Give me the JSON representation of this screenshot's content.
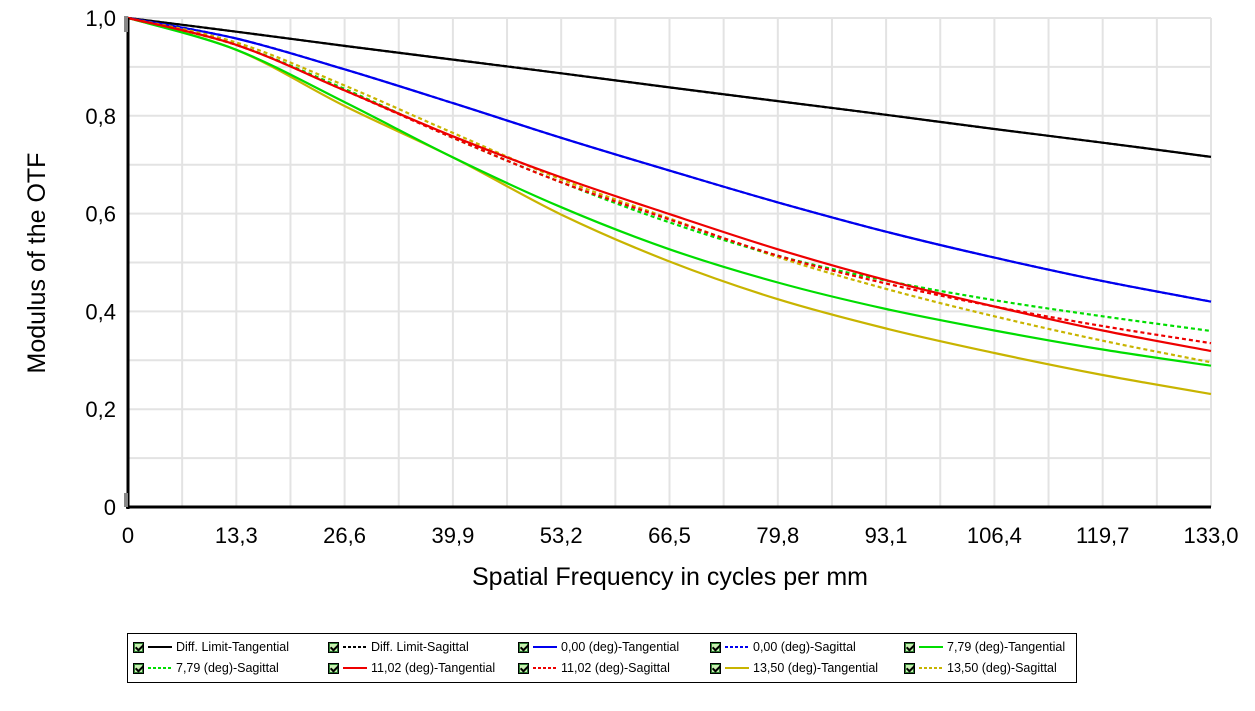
{
  "chart_data": {
    "type": "line",
    "xlabel": "Spatial Frequency in cycles per mm",
    "ylabel": "Modulus of the OTF",
    "xlim": [
      0,
      133
    ],
    "ylim": [
      0,
      1
    ],
    "x_ticks": [
      "0",
      "13,3",
      "26,6",
      "39,9",
      "53,2",
      "66,5",
      "79,8",
      "93,1",
      "106,4",
      "119,7",
      "133,0"
    ],
    "x_tick_values": [
      0,
      13.3,
      26.6,
      39.9,
      53.2,
      66.5,
      79.8,
      93.1,
      106.4,
      119.7,
      133.0
    ],
    "y_ticks": [
      "0",
      "0,2",
      "0,4",
      "0,6",
      "0,8",
      "1,0"
    ],
    "y_tick_values": [
      0,
      0.2,
      0.4,
      0.6,
      0.8,
      1.0
    ],
    "grid": true,
    "legend_position": "bottom",
    "x": [
      0,
      13.3,
      26.6,
      39.9,
      53.2,
      66.5,
      79.8,
      93.1,
      106.4,
      119.7,
      133.0
    ],
    "series": [
      {
        "name": "Diff. Limit-Tangential",
        "color": "#000000",
        "dash": "solid",
        "values": [
          1.0,
          0.972,
          0.943,
          0.915,
          0.887,
          0.858,
          0.83,
          0.802,
          0.773,
          0.745,
          0.716
        ]
      },
      {
        "name": "Diff. Limit-Sagittal",
        "color": "#000000",
        "dash": "dotted",
        "values": [
          1.0,
          0.972,
          0.943,
          0.915,
          0.887,
          0.858,
          0.83,
          0.802,
          0.773,
          0.745,
          0.716
        ]
      },
      {
        "name": "0,00 (deg)-Tangential",
        "color": "#0000ee",
        "dash": "solid",
        "values": [
          1.0,
          0.958,
          0.895,
          0.826,
          0.755,
          0.688,
          0.623,
          0.563,
          0.51,
          0.462,
          0.42
        ]
      },
      {
        "name": "0,00 (deg)-Sagittal",
        "color": "#0000ee",
        "dash": "dotted",
        "values": [
          1.0,
          0.958,
          0.895,
          0.826,
          0.755,
          0.688,
          0.623,
          0.563,
          0.51,
          0.462,
          0.42
        ]
      },
      {
        "name": "7,79 (deg)-Tangential",
        "color": "#00dd00",
        "dash": "solid",
        "values": [
          1.0,
          0.935,
          0.828,
          0.715,
          0.613,
          0.527,
          0.459,
          0.405,
          0.361,
          0.322,
          0.289
        ]
      },
      {
        "name": "7,79 (deg)-Sagittal",
        "color": "#00dd00",
        "dash": "dotted",
        "values": [
          1.0,
          0.945,
          0.855,
          0.755,
          0.664,
          0.582,
          0.514,
          0.463,
          0.423,
          0.39,
          0.36
        ]
      },
      {
        "name": "11,02 (deg)-Tangential",
        "color": "#ee0000",
        "dash": "solid",
        "values": [
          1.0,
          0.945,
          0.852,
          0.758,
          0.674,
          0.599,
          0.527,
          0.464,
          0.41,
          0.361,
          0.319
        ]
      },
      {
        "name": "11,02 (deg)-Sagittal",
        "color": "#ee0000",
        "dash": "dotted",
        "values": [
          1.0,
          0.945,
          0.852,
          0.755,
          0.664,
          0.588,
          0.514,
          0.457,
          0.41,
          0.37,
          0.335
        ]
      },
      {
        "name": "13,50 (deg)-Tangential",
        "color": "#c8b400",
        "dash": "solid",
        "values": [
          1.0,
          0.935,
          0.82,
          0.715,
          0.598,
          0.502,
          0.425,
          0.365,
          0.315,
          0.27,
          0.231
        ]
      },
      {
        "name": "13,50 (deg)-Sagittal",
        "color": "#c8b400",
        "dash": "dotted",
        "values": [
          1.0,
          0.95,
          0.862,
          0.765,
          0.67,
          0.59,
          0.511,
          0.446,
          0.39,
          0.34,
          0.296
        ]
      }
    ]
  }
}
